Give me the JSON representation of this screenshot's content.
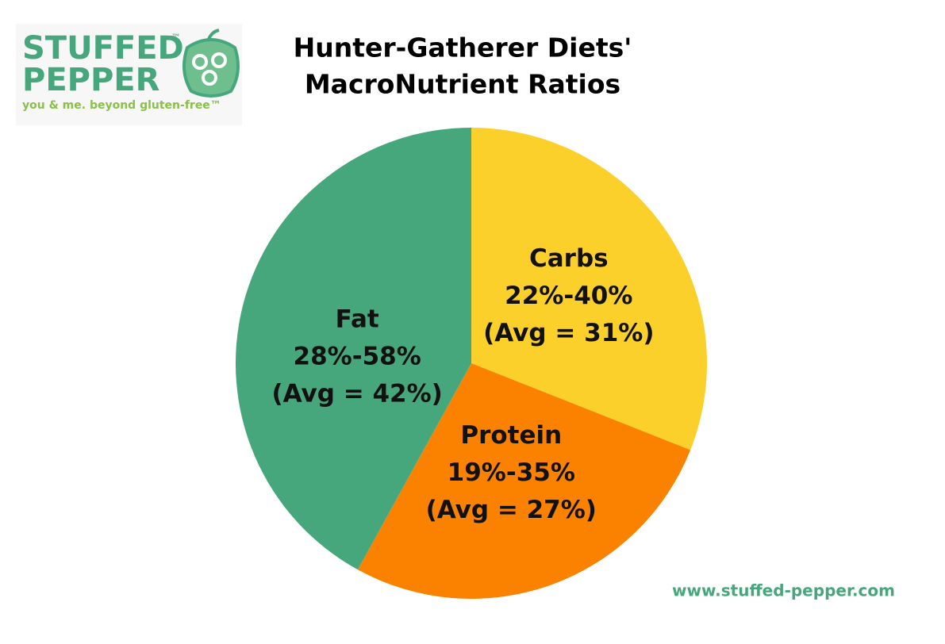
{
  "logo": {
    "name_top": "STUFFED",
    "name_bottom": "PEPPER",
    "trademark": "™",
    "tagline": "you & me. beyond gluten-free™"
  },
  "footer": "www.stuffed-pepper.com",
  "chart_data": {
    "type": "pie",
    "title": [
      "Hunter-Gatherer Diets'",
      "MacroNutrient Ratios"
    ],
    "categories": [
      "Carbs",
      "Protein",
      "Fat"
    ],
    "values": [
      31,
      27,
      42
    ],
    "value_labels": [
      "(Avg = 31%)",
      "(Avg = 27%)",
      "(Avg = 42%)"
    ],
    "range_labels": [
      "22%-40%",
      "19%-35%",
      "28%-58%"
    ],
    "colors": [
      "#fcd02a",
      "#fb8200",
      "#47a77c"
    ]
  }
}
